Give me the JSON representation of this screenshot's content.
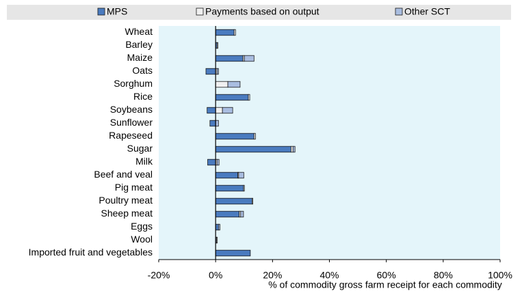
{
  "chart_data": {
    "type": "bar",
    "orientation": "horizontal",
    "stacked": true,
    "x_label": "% of commodity gross farm receipt for each commodity",
    "categories": [
      "Wheat",
      "Barley",
      "Maize",
      "Oats",
      "Sorghum",
      "Rice",
      "Soybeans",
      "Sunflower",
      "Rapeseed",
      "Sugar",
      "Milk",
      "Beef and veal",
      "Pig meat",
      "Poultry meat",
      "Sheep meat",
      "Eggs",
      "Wool",
      "Imported fruit and vegetables"
    ],
    "series": [
      {
        "name": "MPS",
        "color": "#4a7bbf",
        "values": [
          6.5,
          0.5,
          9.6,
          -3.4,
          0,
          11.5,
          -3,
          -2,
          13.5,
          26.5,
          -2.8,
          7.8,
          9.8,
          12.8,
          8.3,
          1,
          0.3,
          12.2
        ]
      },
      {
        "name": "Payments based on output",
        "color": "#f0f0f0",
        "values": [
          0.5,
          0.3,
          0.5,
          0.5,
          4.3,
          0.5,
          2.4,
          0,
          0.5,
          0.7,
          0.5,
          0.3,
          0.3,
          0.3,
          0.5,
          0,
          0.3,
          0
        ]
      },
      {
        "name": "Other SCT",
        "color": "#a9bde0",
        "values": [
          0,
          0,
          3.4,
          0.5,
          4.3,
          0,
          3.6,
          1,
          0,
          0.7,
          0.7,
          1.8,
          0,
          0,
          1,
          0.5,
          0,
          0
        ]
      }
    ],
    "xlim": [
      -20,
      100
    ],
    "xticks": [
      {
        "value": -20,
        "label": "-20%"
      },
      {
        "value": 0,
        "label": "0%"
      },
      {
        "value": 20,
        "label": "20%"
      },
      {
        "value": 40,
        "label": "40%"
      },
      {
        "value": 60,
        "label": "60%"
      },
      {
        "value": 80,
        "label": "80%"
      },
      {
        "value": 100,
        "label": "100%"
      }
    ],
    "plot_background": "#e4f5fa",
    "legend": "top"
  }
}
